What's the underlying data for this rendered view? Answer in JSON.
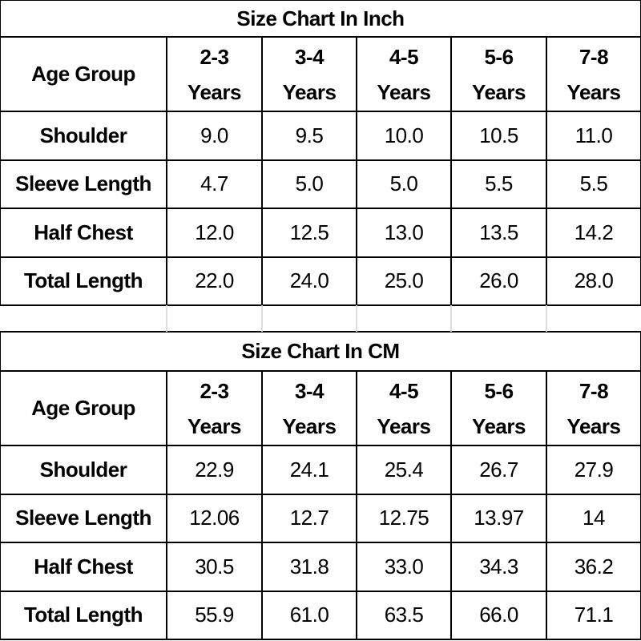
{
  "tables": [
    {
      "title": "Size Chart In Inch",
      "header_label": "Age Group",
      "columns": [
        {
          "range": "2-3",
          "unit": "Years"
        },
        {
          "range": "3-4",
          "unit": "Years"
        },
        {
          "range": "4-5",
          "unit": "Years"
        },
        {
          "range": "5-6",
          "unit": "Years"
        },
        {
          "range": "7-8",
          "unit": "Years"
        }
      ],
      "rows": [
        {
          "label": "Shoulder",
          "values": [
            "9.0",
            "9.5",
            "10.0",
            "10.5",
            "11.0"
          ]
        },
        {
          "label": "Sleeve Length",
          "values": [
            "4.7",
            "5.0",
            "5.0",
            "5.5",
            "5.5"
          ]
        },
        {
          "label": "Half Chest",
          "values": [
            "12.0",
            "12.5",
            "13.0",
            "13.5",
            "14.2"
          ]
        },
        {
          "label": "Total Length",
          "values": [
            "22.0",
            "24.0",
            "25.0",
            "26.0",
            "28.0"
          ]
        }
      ]
    },
    {
      "title": "Size Chart In CM",
      "header_label": "Age Group",
      "columns": [
        {
          "range": "2-3",
          "unit": "Years"
        },
        {
          "range": "3-4",
          "unit": "Years"
        },
        {
          "range": "4-5",
          "unit": "Years"
        },
        {
          "range": "5-6",
          "unit": "Years"
        },
        {
          "range": "7-8",
          "unit": "Years"
        }
      ],
      "rows": [
        {
          "label": "Shoulder",
          "values": [
            "22.9",
            "24.1",
            "25.4",
            "26.7",
            "27.9"
          ]
        },
        {
          "label": "Sleeve Length",
          "values": [
            "12.06",
            "12.7",
            "12.75",
            "13.97",
            "14"
          ]
        },
        {
          "label": "Half Chest",
          "values": [
            "30.5",
            "31.8",
            "33.0",
            "34.3",
            "36.2"
          ]
        },
        {
          "label": "Total Length",
          "values": [
            "55.9",
            "61.0",
            "63.5",
            "66.0",
            "71.1"
          ]
        }
      ]
    }
  ]
}
